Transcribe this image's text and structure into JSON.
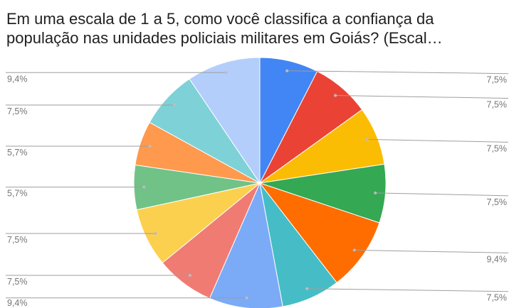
{
  "chart_data": {
    "type": "pie",
    "title": [
      "Em uma escala de 1 a 5, como você classifica a confiança da",
      "população nas unidades policiais militares em Goiás? (Escal…"
    ],
    "values": [
      7.5,
      7.5,
      7.5,
      7.5,
      9.4,
      7.5,
      9.4,
      7.5,
      7.5,
      5.7,
      5.7,
      7.5,
      9.4
    ],
    "value_labels": [
      "7,5%",
      "7,5%",
      "7,5%",
      "7,5%",
      "9,4%",
      "7,5%",
      "9,4%",
      "7,5%",
      "7,5%",
      "5,7%",
      "5,7%",
      "7,5%",
      "9,4%"
    ],
    "colors": [
      "#4285f4",
      "#ea4335",
      "#fbbc04",
      "#34a853",
      "#ff6d01",
      "#46bdc6",
      "#7baaf7",
      "#f07b72",
      "#fcd04f",
      "#71c287",
      "#ff994d",
      "#7ed1d7",
      "#b3cefb"
    ]
  }
}
